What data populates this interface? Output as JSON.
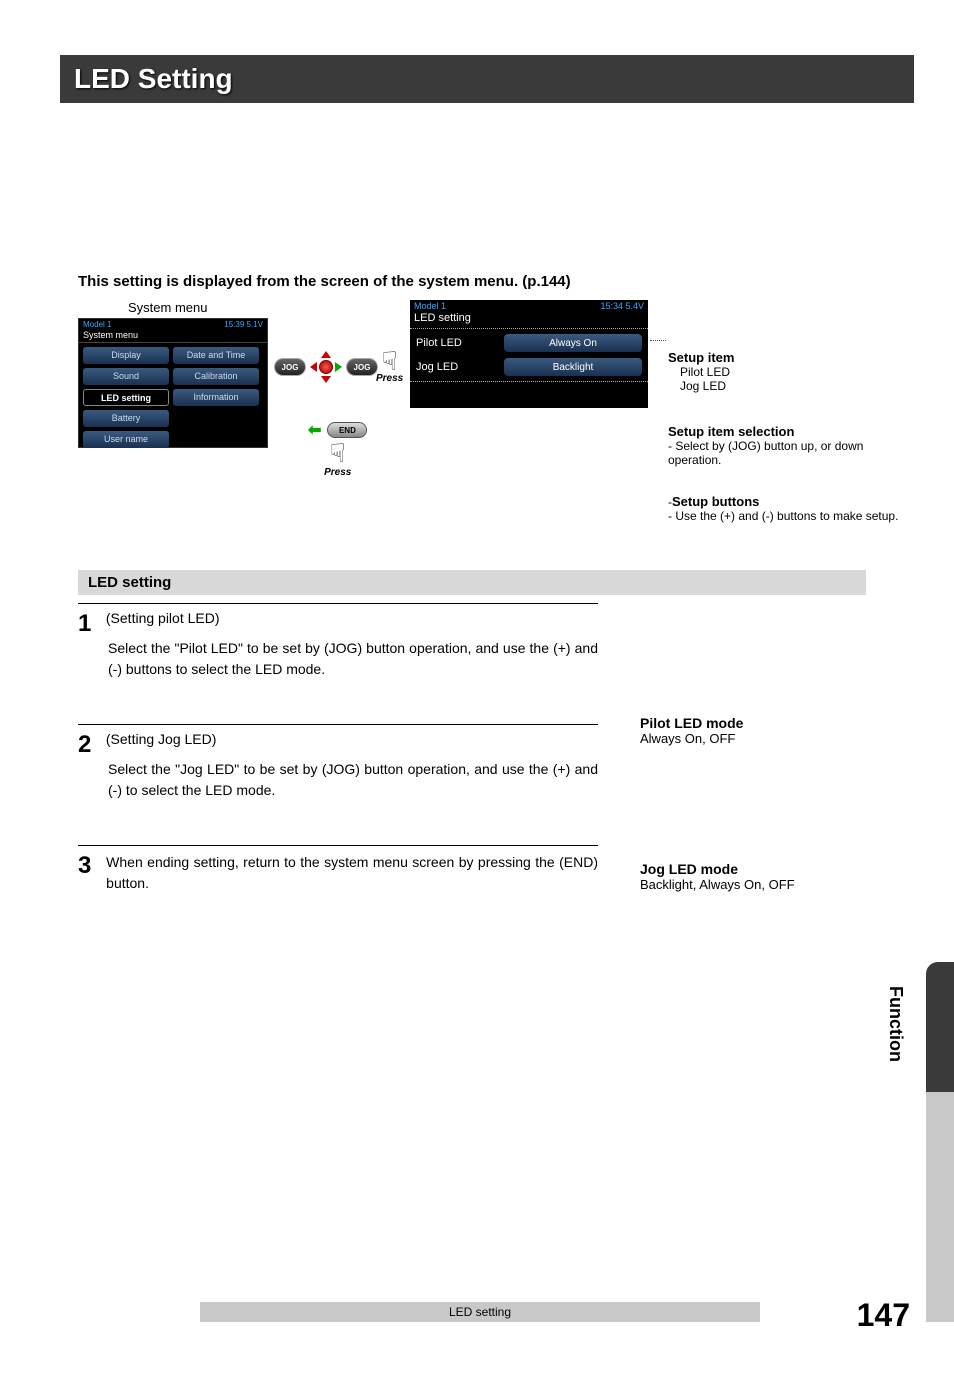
{
  "title": "LED Setting",
  "intro": "This setting is displayed from the screen of the system menu. (p.144)",
  "diagram": {
    "system_menu_caption": "System menu",
    "screen1": {
      "header_left": "Model 1",
      "header_right": "15:39  5.1V",
      "subtitle": "System menu",
      "items": [
        "Display",
        "Date and Time",
        "Sound",
        "Calibration",
        "LED setting",
        "Information",
        "Battery",
        "",
        "User name",
        ""
      ],
      "selected_index": 4
    },
    "jog_label": "JOG",
    "end_label": "END",
    "press_label": "Press",
    "screen2": {
      "header_left": "Model 1",
      "header_right": "15:34  5.4V",
      "title": "LED setting",
      "rows": [
        {
          "label": "Pilot LED",
          "value": "Always On"
        },
        {
          "label": "Jog LED",
          "value": "Backlight"
        }
      ]
    },
    "annot1": {
      "title": "Setup item",
      "lines": [
        "Pilot LED",
        "Jog LED"
      ]
    },
    "annot2": {
      "title": "Setup item selection",
      "text": "- Select by (JOG) button up, or down operation."
    },
    "annot3": {
      "prefix": "-",
      "title": "Setup buttons",
      "text": "- Use the (+) and (-) buttons to make setup."
    }
  },
  "section_title": "LED setting",
  "steps": [
    {
      "num": "1",
      "head": "(Setting pilot LED)",
      "body": "Select the \"Pilot LED\" to be set by (JOG) button operation, and use the (+) and (-) buttons to select the LED mode."
    },
    {
      "num": "2",
      "head": "(Setting Jog LED)",
      "body": "Select the \"Jog LED\" to be set by (JOG) button operation, and use the (+) and (-) to select the LED mode."
    },
    {
      "num": "3",
      "head": "",
      "body": "When ending setting, return to the system menu screen by pressing the (END) button."
    }
  ],
  "side_notes": [
    {
      "title": "Pilot LED mode",
      "text": "Always On, OFF"
    },
    {
      "title": "Jog LED mode",
      "text": "Backlight, Always On, OFF"
    }
  ],
  "footer": "LED setting",
  "page_number": "147",
  "side_tab_label": "Function",
  "colors": {
    "titlebar_bg": "#3a3a3a",
    "section_bg": "#d8d8d8",
    "footer_bg": "#c8c8c8",
    "screen_bg": "#000000",
    "pill_grad_top": "#3a5a80",
    "pill_grad_bot": "#1a3050"
  }
}
